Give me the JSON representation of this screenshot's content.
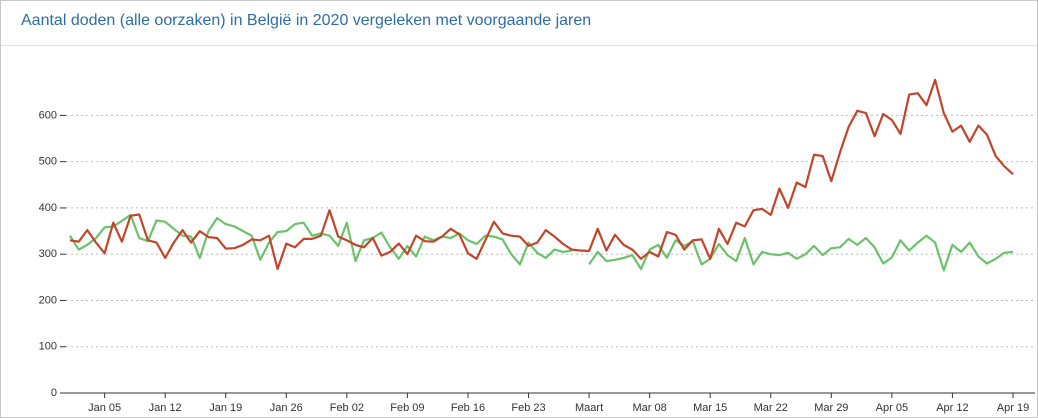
{
  "chart_data": {
    "type": "line",
    "title": "Aantal doden (alle oorzaken) in België in 2020 vergeleken met voorgaande jaren",
    "categories": [
      null,
      null,
      null,
      null,
      "Jan 05",
      null,
      null,
      null,
      null,
      null,
      null,
      "Jan 12",
      null,
      null,
      null,
      null,
      null,
      null,
      "Jan 19",
      null,
      null,
      null,
      null,
      null,
      null,
      "Jan 26",
      null,
      null,
      null,
      null,
      null,
      null,
      "Feb 02",
      null,
      null,
      null,
      null,
      null,
      null,
      "Feb 09",
      null,
      null,
      null,
      null,
      null,
      null,
      "Feb 16",
      null,
      null,
      null,
      null,
      null,
      null,
      "Feb 23",
      null,
      null,
      null,
      null,
      null,
      null,
      "Maart",
      null,
      null,
      null,
      null,
      null,
      null,
      "Mar 08",
      null,
      null,
      null,
      null,
      null,
      null,
      "Mar 15",
      null,
      null,
      null,
      null,
      null,
      null,
      "Mar 22",
      null,
      null,
      null,
      null,
      null,
      null,
      "Mar 29",
      null,
      null,
      null,
      null,
      null,
      null,
      "Apr 05",
      null,
      null,
      null,
      null,
      null,
      null,
      "Apr 12",
      null,
      null,
      null,
      null,
      null,
      null,
      "Apr 19"
    ],
    "series": [
      {
        "color": "#6cc26a",
        "values": [
          340,
          310,
          320,
          335,
          358,
          360,
          372,
          385,
          335,
          328,
          373,
          370,
          355,
          340,
          338,
          292,
          350,
          378,
          365,
          360,
          350,
          340,
          288,
          325,
          348,
          350,
          365,
          368,
          340,
          345,
          340,
          318,
          368,
          285,
          330,
          335,
          347,
          315,
          290,
          318,
          295,
          338,
          330,
          338,
          335,
          345,
          330,
          322,
          340,
          338,
          332,
          300,
          278,
          325,
          303,
          292,
          310,
          305,
          308,
          null,
          278,
          305,
          285,
          288,
          292,
          298,
          268,
          310,
          320,
          292,
          330,
          318,
          328,
          278,
          290,
          322,
          298,
          285,
          335,
          278,
          305,
          300,
          298,
          303,
          290,
          300,
          318,
          298,
          313,
          315,
          333,
          320,
          335,
          315,
          280,
          293,
          330,
          308,
          325,
          340,
          325,
          265,
          320,
          305,
          325,
          295,
          280,
          290,
          303,
          305
        ]
      },
      {
        "color": "#c2452b",
        "values": [
          330,
          327,
          352,
          325,
          302,
          368,
          327,
          383,
          386,
          330,
          325,
          292,
          325,
          352,
          325,
          350,
          337,
          335,
          312,
          313,
          320,
          332,
          330,
          340,
          268,
          323,
          315,
          333,
          333,
          340,
          395,
          338,
          330,
          320,
          315,
          335,
          297,
          305,
          323,
          300,
          340,
          328,
          327,
          338,
          355,
          343,
          302,
          290,
          330,
          370,
          345,
          340,
          338,
          318,
          325,
          352,
          338,
          322,
          310,
          308,
          307,
          355,
          308,
          342,
          320,
          310,
          290,
          305,
          295,
          348,
          342,
          310,
          330,
          332,
          290,
          355,
          322,
          368,
          360,
          395,
          398,
          385,
          442,
          400,
          455,
          445,
          515,
          512,
          458,
          520,
          575,
          610,
          605,
          555,
          603,
          590,
          560,
          645,
          648,
          622,
          677,
          605,
          565,
          578,
          543,
          578,
          558,
          512,
          490,
          473
        ]
      }
    ],
    "ylim": [
      0,
      750
    ],
    "yticks": [
      0,
      100,
      200,
      300,
      400,
      500,
      600
    ],
    "grid": true
  }
}
